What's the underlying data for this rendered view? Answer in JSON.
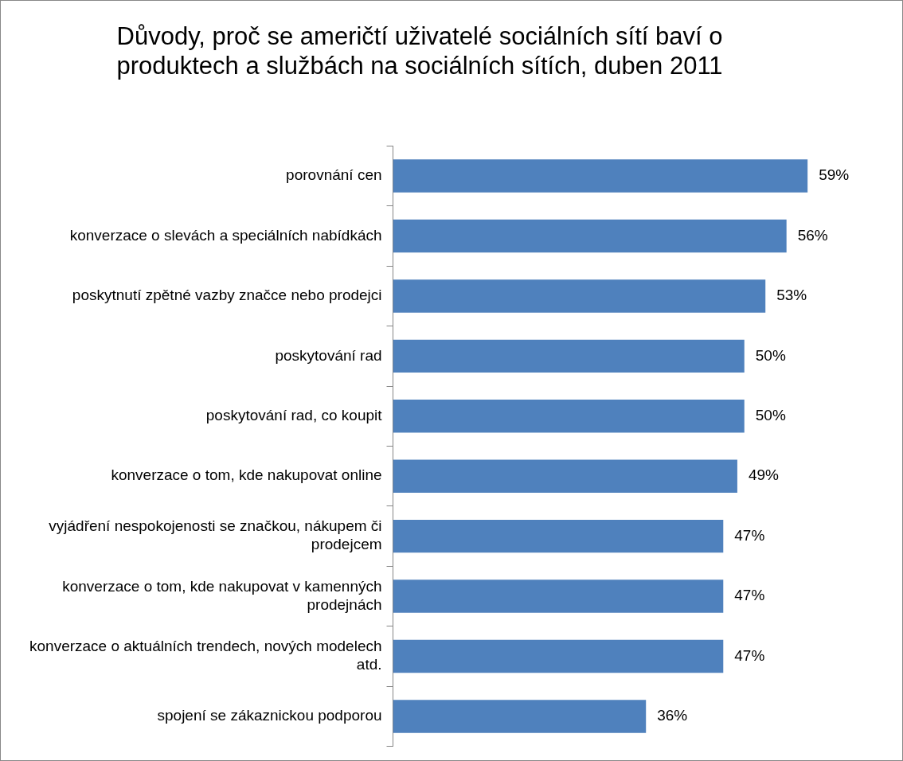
{
  "chart_data": {
    "type": "bar",
    "orientation": "horizontal",
    "title": "Důvody, proč se američtí uživatelé sociálních sítí baví o produktech a službách na sociálních sítích, duben 2011",
    "categories": [
      "porovnání cen",
      "konverzace o slevách a speciálních nabídkách",
      "poskytnutí zpětné vazby značce nebo prodejci",
      "poskytování rad",
      "poskytování rad, co koupit",
      "konverzace o tom, kde nakupovat online",
      "vyjádření nespokojenosti se značkou, nákupem či prodejcem",
      "konverzace o tom, kde nakupovat v kamenných prodejnách",
      "konverzace o aktuálních trendech, nových modelech atd.",
      "spojení se zákaznickou podporou"
    ],
    "values": [
      59,
      56,
      53,
      50,
      50,
      49,
      47,
      47,
      47,
      36
    ],
    "value_labels": [
      "59%",
      "56%",
      "53%",
      "50%",
      "50%",
      "49%",
      "47%",
      "47%",
      "47%",
      "36%"
    ],
    "color": "#4f81bd",
    "tick_labels": "y",
    "legend": false
  }
}
